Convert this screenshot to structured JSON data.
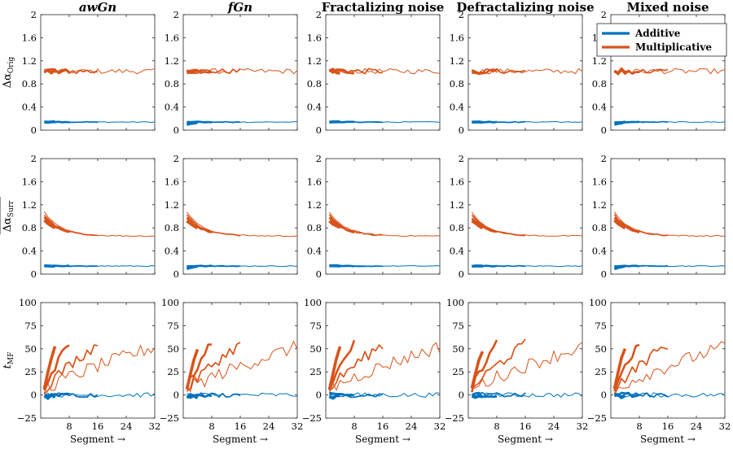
{
  "chart_data": {
    "type": "line",
    "layout": "grid 3 rows x 5 columns",
    "columns": [
      {
        "title": "awGn",
        "italic": true
      },
      {
        "title": "fGn",
        "italic": true
      },
      {
        "title": "Fractalizing noise",
        "italic": false
      },
      {
        "title": "Defractalizing noise",
        "italic": false
      },
      {
        "title": "Mixed noise",
        "italic": false
      }
    ],
    "xlabel": "Segment →",
    "xticks": [
      8,
      16,
      24,
      32
    ],
    "xlim": [
      0,
      32
    ],
    "rows": [
      {
        "ylabel_main": "Δα",
        "ylabel_sub": "Orig",
        "overline": false,
        "ylim": [
          0,
          2
        ],
        "yticks": [
          "0",
          "0.4",
          "0.8",
          "1.2",
          "1.6",
          "2"
        ],
        "multiplicative_level": 1.02,
        "additive_level": 0.14
      },
      {
        "ylabel_main": "Δα",
        "ylabel_sub": "Surr",
        "overline": true,
        "ylim": [
          0,
          2
        ],
        "yticks": [
          "0",
          "0.4",
          "0.8",
          "1.2",
          "1.6",
          "2"
        ],
        "multiplicative_level": 0.66,
        "multiplicative_start": 1.0,
        "additive_level": 0.14
      },
      {
        "ylabel_main": "t",
        "ylabel_sub": "MF",
        "overline": false,
        "ylim": [
          -25,
          100
        ],
        "yticks": [
          "−25",
          "0",
          "25",
          "50",
          "75",
          "100"
        ],
        "multiplicative_end_values": [
          50,
          56,
          55,
          52
        ],
        "additive_level": 0
      }
    ],
    "series": [
      {
        "name": "Additive",
        "color": "#0072BD"
      },
      {
        "name": "Multiplicative",
        "color": "#D95319"
      }
    ],
    "segment_groups": [
      4,
      8,
      16,
      32
    ],
    "legend_placement": "top-right (Mixed noise, top row)",
    "grid": false
  }
}
